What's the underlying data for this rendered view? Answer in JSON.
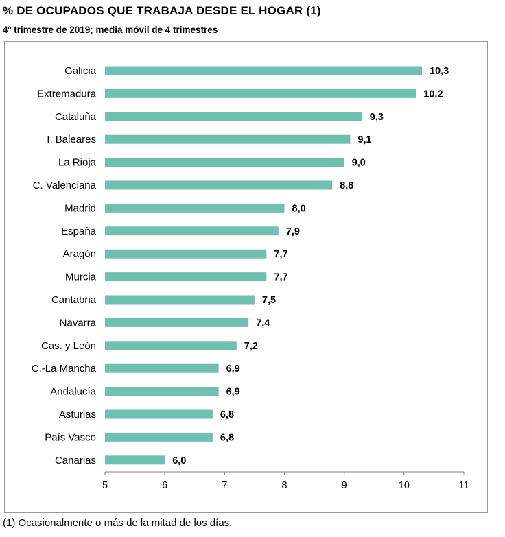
{
  "header": {
    "title": "% DE OCUPADOS QUE TRABAJA DESDE EL HOGAR (1)",
    "subtitle": "4º trimestre de 2019; media móvil de 4 trimestres"
  },
  "footnote": "(1) Ocasionalmente o más de la mitad de los días.",
  "colors": {
    "bar": "#6fc0b0",
    "axis": "#808080",
    "frame": "#9a9a9a"
  },
  "chart_data": {
    "type": "bar",
    "orientation": "horizontal",
    "title": "% DE OCUPADOS QUE TRABAJA DESDE EL HOGAR (1)",
    "subtitle": "4º trimestre de 2019; media móvil de 4 trimestres",
    "categories": [
      "Galicia",
      "Extremadura",
      "Cataluña",
      "I. Baleares",
      "La Rioja",
      "C. Valenciana",
      "Madrid",
      "España",
      "Aragón",
      "Murcia",
      "Cantabria",
      "Navarra",
      "Cas. y León",
      "C.-La Mancha",
      "Andalucía",
      "Asturias",
      "País Vasco",
      "Canarias"
    ],
    "values": [
      10.3,
      10.2,
      9.3,
      9.1,
      9.0,
      8.8,
      8.0,
      7.9,
      7.7,
      7.7,
      7.5,
      7.4,
      7.2,
      6.9,
      6.9,
      6.8,
      6.8,
      6.0
    ],
    "value_labels": [
      "10,3",
      "10,2",
      "9,3",
      "9,1",
      "9,0",
      "8,8",
      "8,0",
      "7,9",
      "7,7",
      "7,7",
      "7,5",
      "7,4",
      "7,2",
      "6,9",
      "6,9",
      "6,8",
      "6,8",
      "6,0"
    ],
    "xlim": [
      5,
      11
    ],
    "xticks": [
      5,
      6,
      7,
      8,
      9,
      10,
      11
    ],
    "xlabel": "",
    "ylabel": "",
    "grid": false,
    "legend": "none"
  }
}
